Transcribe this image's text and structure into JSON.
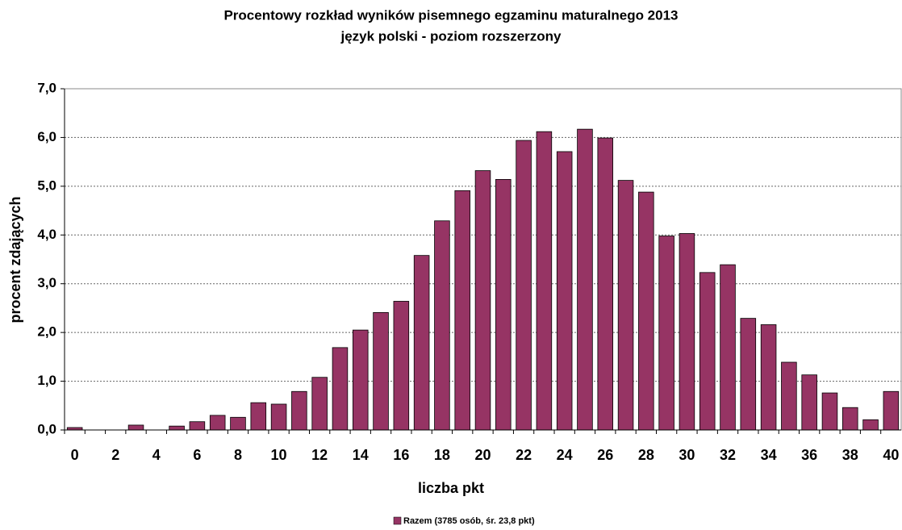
{
  "chart_data": {
    "type": "bar",
    "title": "Procentowy rozkład wyników pisemnego egzaminu maturalnego 2013",
    "subtitle": "język polski - poziom rozszerzony",
    "x_label": "liczba pkt",
    "y_label": "procent zdających",
    "categories": [
      "0",
      null,
      "2",
      null,
      "4",
      null,
      "6",
      null,
      "8",
      null,
      "10",
      null,
      "12",
      null,
      "14",
      null,
      "16",
      null,
      "18",
      null,
      "20",
      null,
      "22",
      null,
      "24",
      null,
      "26",
      null,
      "28",
      null,
      "30",
      null,
      "32",
      null,
      "34",
      null,
      "36",
      null,
      "38",
      null,
      "40"
    ],
    "series": [
      {
        "name": "Razem (3785 osób, śr. 23,8 pkt)",
        "color": "#963464",
        "values": [
          0.05,
          0,
          0,
          0.1,
          0,
          0.08,
          0.17,
          0.3,
          0.26,
          0.56,
          0.53,
          0.79,
          1.08,
          1.69,
          2.05,
          2.41,
          2.64,
          3.58,
          4.29,
          4.91,
          5.32,
          5.14,
          5.94,
          6.12,
          5.71,
          6.17,
          5.99,
          5.12,
          4.88,
          3.98,
          4.03,
          3.23,
          3.39,
          2.29,
          2.16,
          1.39,
          1.13,
          0.76,
          0.46,
          0.21,
          0.79
        ]
      }
    ],
    "ylim": [
      0,
      7
    ],
    "yticks": [
      {
        "value": 0,
        "label": "0,0"
      },
      {
        "value": 1,
        "label": "1,0"
      },
      {
        "value": 2,
        "label": "2,0"
      },
      {
        "value": 3,
        "label": "3,0"
      },
      {
        "value": 4,
        "label": "4,0"
      },
      {
        "value": 5,
        "label": "5,0"
      },
      {
        "value": 6,
        "label": "6,0"
      },
      {
        "value": 7,
        "label": "7,0"
      }
    ],
    "grid": true,
    "legend": "bottom"
  }
}
